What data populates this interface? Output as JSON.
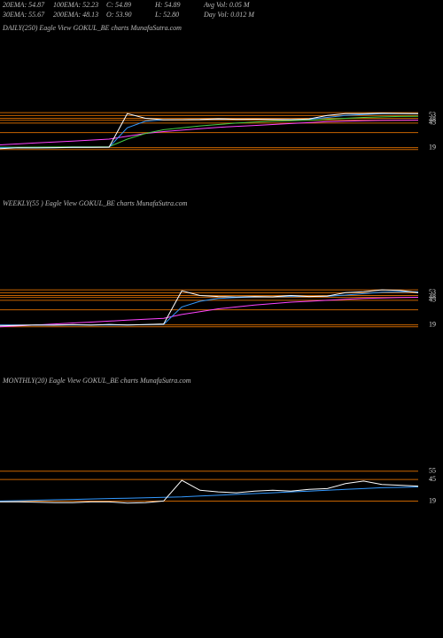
{
  "header": {
    "stats": [
      [
        "20EMA: 54.87",
        "100EMA: 52.23",
        "C: 54.89",
        "H: 54.89",
        "Avg Vol: 0.05 M"
      ],
      [
        "30EMA: 55.67",
        "200EMA: 48.13",
        "O: 53.90",
        "L: 52.80",
        "Day Vol: 0.012 M"
      ]
    ]
  },
  "chart_data": [
    {
      "type": "line",
      "title": "DAILY(250) Eagle  View  GOKUL_BE charts MunafaSutra.com",
      "ylim": [
        14,
        58
      ],
      "yticks": [
        53,
        48,
        45,
        19
      ],
      "level_color": "#c86400",
      "levels": [
        56,
        53,
        50,
        48,
        45,
        35,
        19,
        17
      ],
      "series": [
        {
          "color": "#ff44ff",
          "values": [
            22,
            23,
            24,
            25,
            26,
            27,
            28,
            31,
            34,
            36,
            37.5,
            39,
            40.5,
            41.5,
            42.5,
            43.5,
            44.5,
            45.5,
            46.5,
            47,
            47.5,
            47.8,
            48,
            48.1
          ]
        },
        {
          "color": "#44cc44",
          "values": [
            19.5,
            19.5,
            19.6,
            19.7,
            19.8,
            19.9,
            20,
            28,
            34,
            38,
            40,
            42,
            43.5,
            45,
            46,
            47,
            47.5,
            48,
            49,
            50,
            51,
            51.5,
            52,
            52.2
          ]
        },
        {
          "color": "#3399ff",
          "values": [
            19,
            19,
            19,
            19,
            19.2,
            19.3,
            19.4,
            40,
            47,
            48.5,
            48.6,
            48.7,
            49,
            49,
            49,
            49,
            48.8,
            49,
            51,
            53,
            54,
            55,
            55,
            54.9
          ]
        },
        {
          "color": "#ffffff",
          "values": [
            18,
            19,
            18.8,
            19.1,
            19.3,
            19.4,
            19.6,
            55,
            50,
            48.5,
            48.6,
            48.8,
            49.5,
            49,
            49.1,
            48.9,
            48.6,
            49.4,
            53,
            55,
            55,
            55.5,
            55.2,
            54.9
          ]
        }
      ]
    },
    {
      "type": "line",
      "title": "WEEKLY(55                ) Eagle  View  GOKUL_BE charts MunafaSutra.com",
      "ylim": [
        14,
        58
      ],
      "yticks": [
        53,
        48,
        45,
        19
      ],
      "level_color": "#c86400",
      "levels": [
        56,
        53,
        50,
        48,
        45,
        35,
        19,
        17
      ],
      "series": [
        {
          "color": "#ff44ff",
          "values": [
            17,
            18,
            19,
            20,
            21,
            22,
            23,
            24,
            25,
            26,
            30,
            33,
            36,
            38,
            40,
            41.5,
            43,
            44,
            45,
            46,
            47,
            47.5,
            48,
            48.2
          ]
        },
        {
          "color": "#3399ff",
          "values": [
            19,
            19,
            19,
            19,
            19,
            19,
            19,
            19,
            19.2,
            19.5,
            38,
            44,
            47,
            48,
            48.5,
            48.6,
            49,
            49,
            49.2,
            50.5,
            52,
            53.5,
            54,
            53.8
          ]
        },
        {
          "color": "#ffffff",
          "values": [
            18,
            18.5,
            19,
            18.7,
            19.2,
            18.8,
            19.5,
            19,
            19.3,
            20,
            55,
            50,
            49,
            48.5,
            49,
            48.7,
            50,
            49,
            49.5,
            53,
            54,
            56,
            55.5,
            53
          ]
        }
      ]
    },
    {
      "type": "line",
      "title": "MONTHLY(20) Eagle  View  GOKUL_BE charts MunafaSutra.com",
      "ylim": [
        12,
        60
      ],
      "yticks": [
        55,
        45,
        19
      ],
      "level_color": "#c86400",
      "levels": [
        55,
        45,
        19
      ],
      "series": [
        {
          "color": "#3399ff",
          "values": [
            19,
            19.5,
            20,
            20.5,
            21,
            21.5,
            22,
            22.5,
            23,
            23.5,
            24,
            25,
            26,
            27,
            28,
            29,
            30,
            31,
            32,
            33,
            34,
            35,
            35.5,
            36
          ]
        },
        {
          "color": "#ffffff",
          "values": [
            18,
            18,
            17.5,
            17,
            17,
            18,
            18,
            16.5,
            17,
            19,
            44,
            32,
            30,
            29,
            31,
            32,
            31,
            33,
            34,
            40,
            43,
            39,
            38,
            37
          ]
        }
      ]
    }
  ]
}
